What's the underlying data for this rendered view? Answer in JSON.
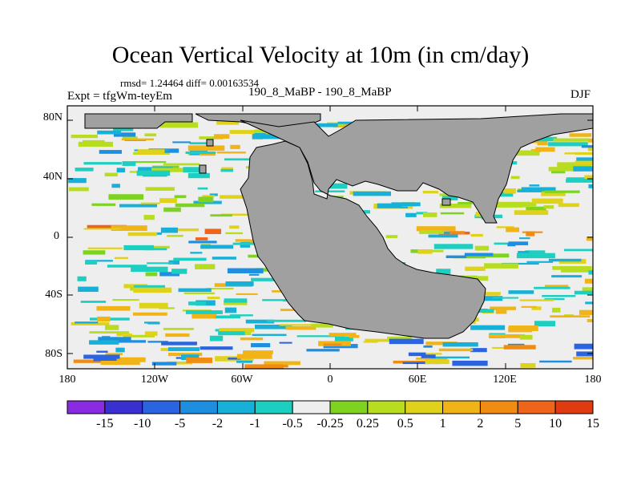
{
  "title": "Ocean Vertical Velocity at 10m (in cm/day)",
  "stats": "rmsd= 1.24464 diff= 0.00163534",
  "experiment": "Expt = tfgWm-teyEm",
  "center_label": "190_8_MaBP - 190_8_MaBP",
  "season": "DJF",
  "lat_labels": [
    "80N",
    "40N",
    "0",
    "40S",
    "80S"
  ],
  "lon_labels": [
    "180",
    "120W",
    "60W",
    "0",
    "60E",
    "120E",
    "180"
  ],
  "colorbar": {
    "labels": [
      "-15",
      "-10",
      "-5",
      "-2",
      "-1",
      "-0.5",
      "-0.25",
      "0.25",
      "0.5",
      "1",
      "2",
      "5",
      "10",
      "15"
    ],
    "colors": [
      "#8a2be2",
      "#3a2fd0",
      "#2a64e0",
      "#1e8fe0",
      "#16b0d8",
      "#1ccfc0",
      "#eeeeee",
      "#7ed321",
      "#b8dc20",
      "#e0d21a",
      "#f0b418",
      "#f08c12",
      "#ee6418",
      "#e03a10"
    ]
  },
  "land_color": "#a0a0a0"
}
